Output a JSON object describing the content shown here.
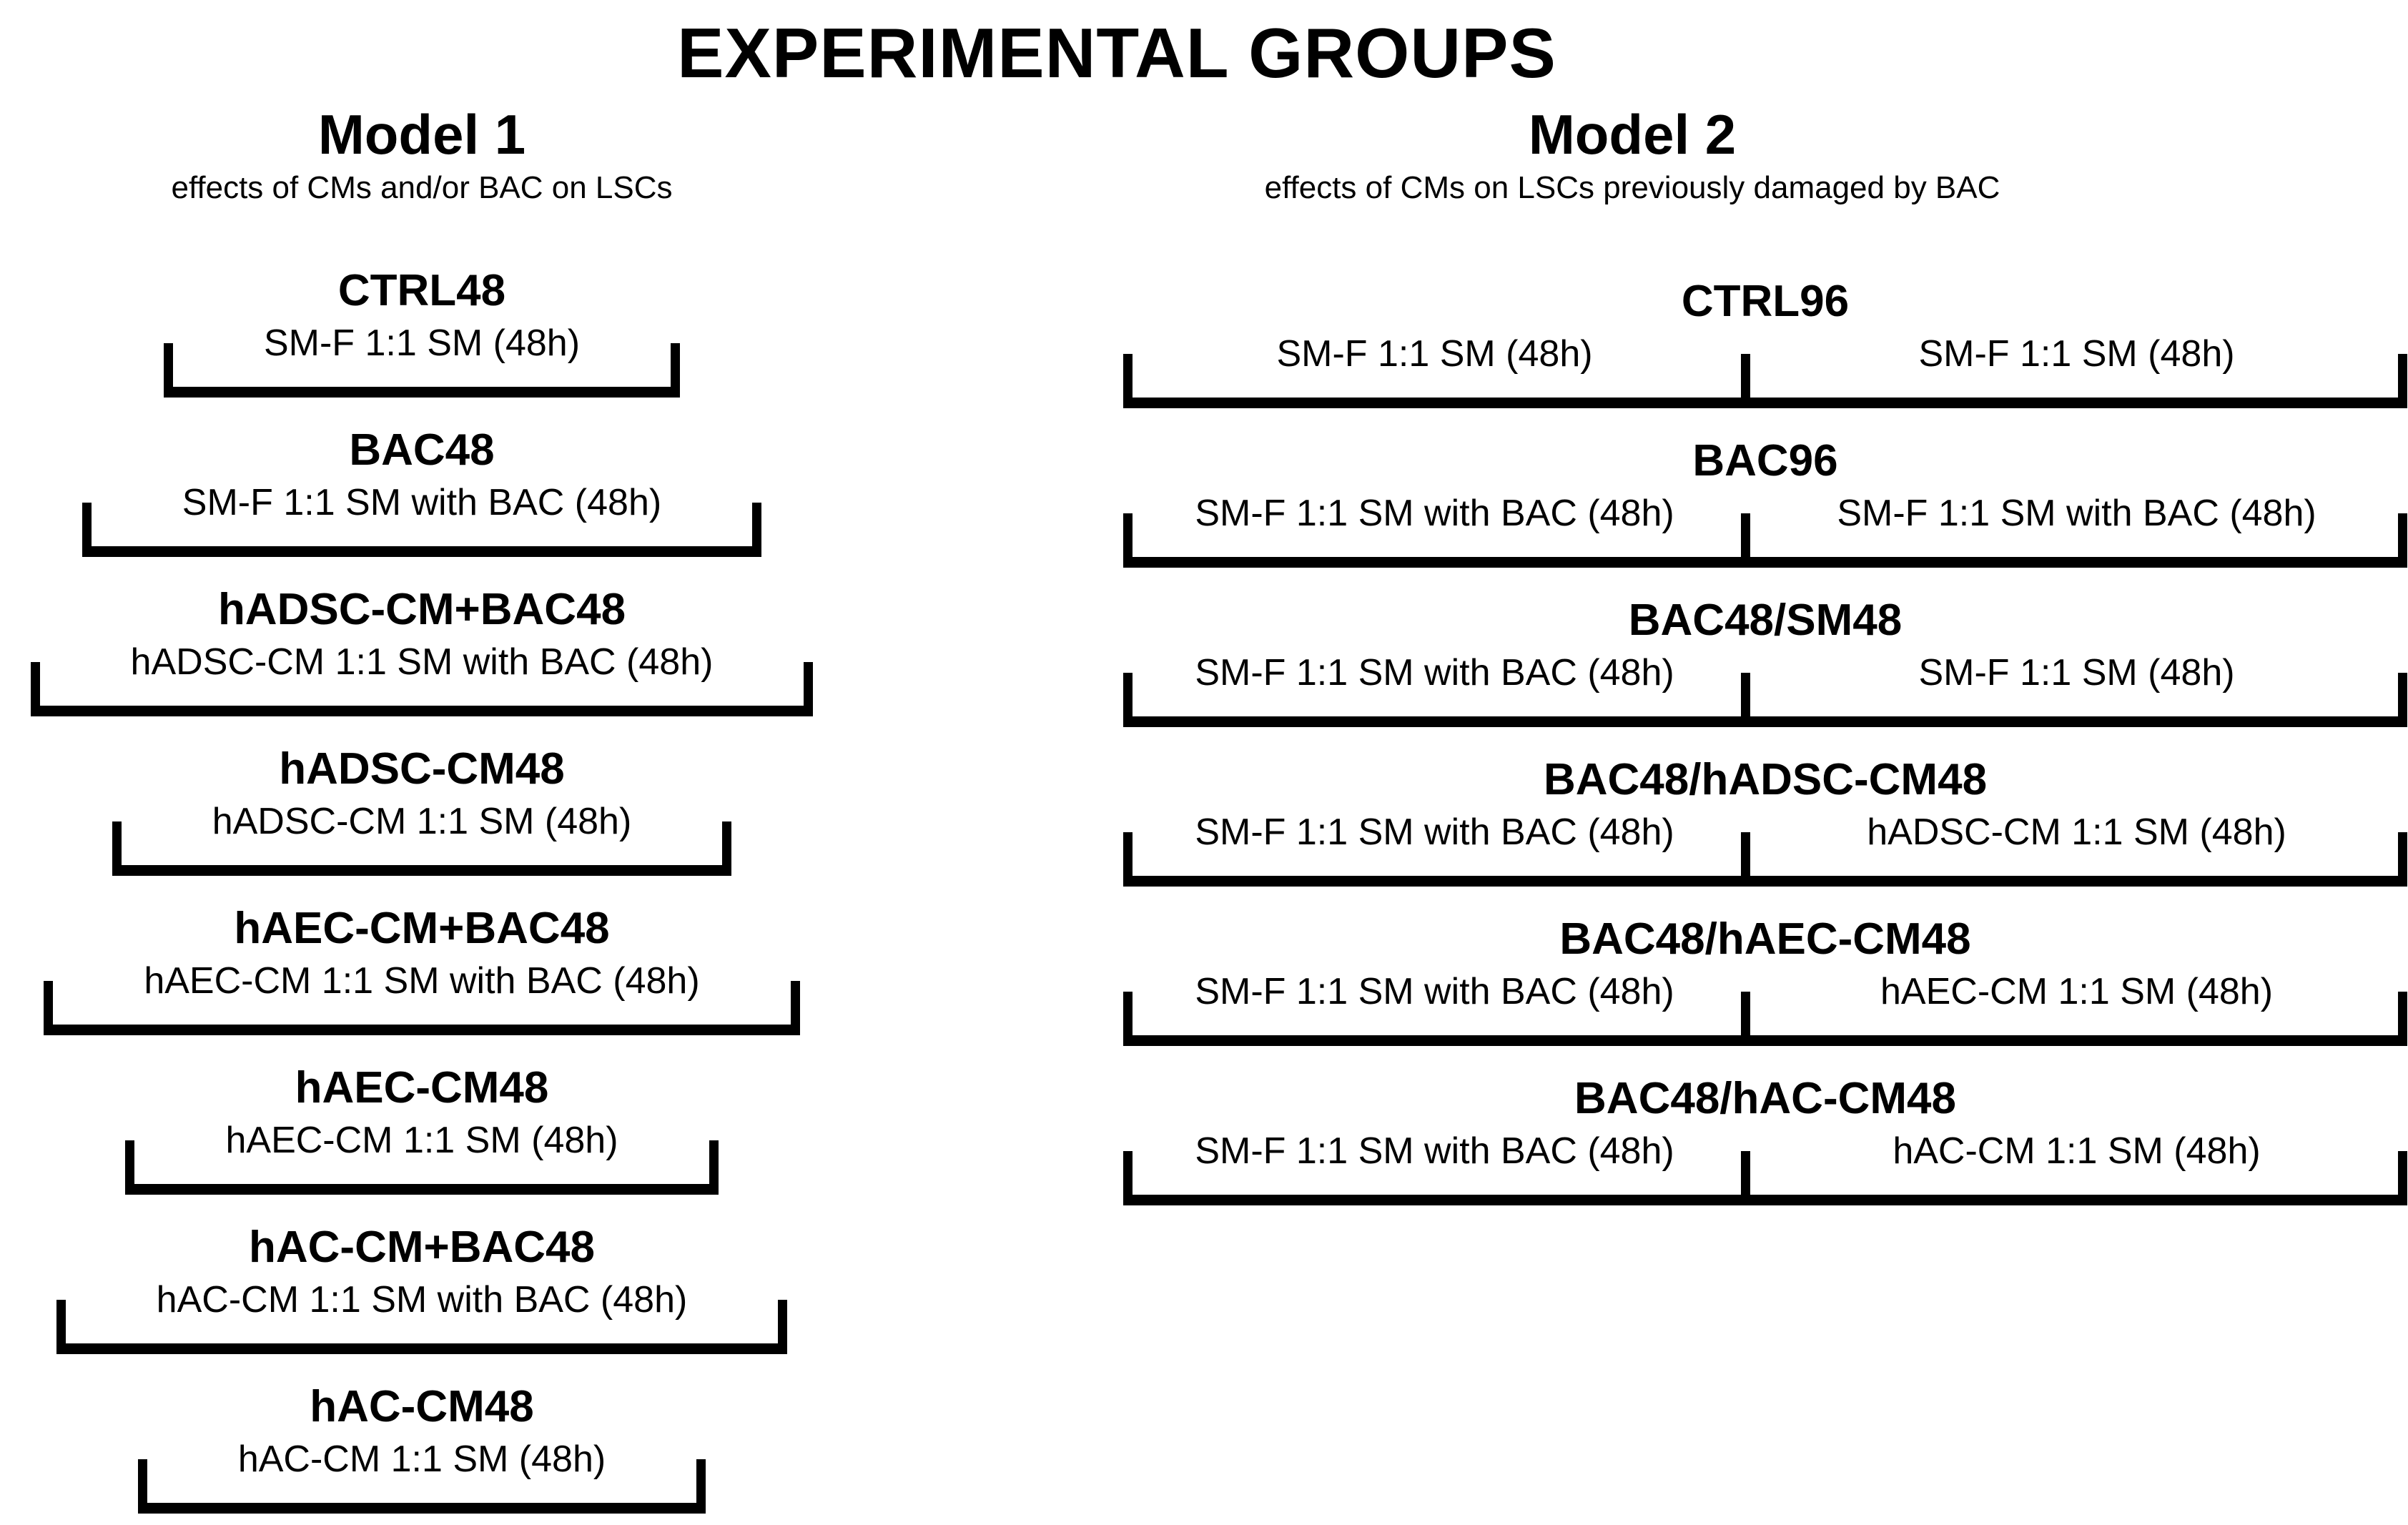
{
  "page": {
    "title": "EXPERIMENTAL GROUPS"
  },
  "colors": {
    "foreground": "#000000",
    "background": "#ffffff"
  },
  "model1": {
    "name": "Model 1",
    "subtitle": "effects of CMs and/or BAC on LSCs",
    "groups": [
      {
        "name": "CTRL48",
        "treatment": "SM-F 1:1 SM (48h)"
      },
      {
        "name": "BAC48",
        "treatment": "SM-F 1:1 SM with BAC (48h)"
      },
      {
        "name": "hADSC-CM+BAC48",
        "treatment": "hADSC-CM 1:1 SM with BAC (48h)"
      },
      {
        "name": "hADSC-CM48",
        "treatment": "hADSC-CM 1:1 SM (48h)"
      },
      {
        "name": "hAEC-CM+BAC48",
        "treatment": "hAEC-CM 1:1 SM with BAC (48h)"
      },
      {
        "name": "hAEC-CM48",
        "treatment": "hAEC-CM 1:1 SM (48h)"
      },
      {
        "name": "hAC-CM+BAC48",
        "treatment": "hAC-CM 1:1 SM with BAC (48h)"
      },
      {
        "name": "hAC-CM48",
        "treatment": "hAC-CM 1:1 SM (48h)"
      }
    ]
  },
  "model2": {
    "name": "Model 2",
    "subtitle": "effects of CMs on LSCs previously damaged by BAC",
    "groups": [
      {
        "name": "CTRL96",
        "phase1": "SM-F 1:1 SM (48h)",
        "phase2": "SM-F 1:1 SM (48h)"
      },
      {
        "name": "BAC96",
        "phase1": "SM-F 1:1 SM with BAC (48h)",
        "phase2": "SM-F 1:1 SM with BAC (48h)"
      },
      {
        "name": "BAC48/SM48",
        "phase1": "SM-F 1:1 SM with BAC (48h)",
        "phase2": "SM-F 1:1 SM (48h)"
      },
      {
        "name": "BAC48/hADSC-CM48",
        "phase1": "SM-F 1:1 SM with BAC (48h)",
        "phase2": "hADSC-CM 1:1 SM (48h)"
      },
      {
        "name": "BAC48/hAEC-CM48",
        "phase1": "SM-F 1:1 SM with BAC (48h)",
        "phase2": "hAEC-CM 1:1 SM (48h)"
      },
      {
        "name": "BAC48/hAC-CM48",
        "phase1": "SM-F 1:1 SM with BAC (48h)",
        "phase2": "hAC-CM 1:1 SM (48h)"
      }
    ]
  }
}
